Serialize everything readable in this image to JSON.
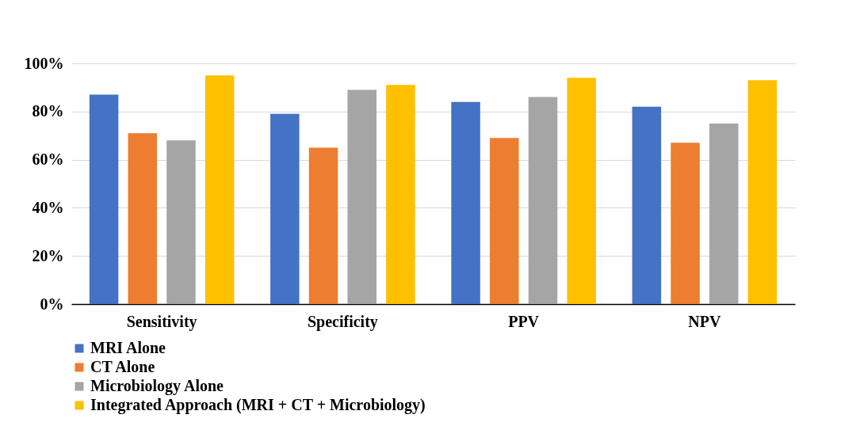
{
  "chart_data": {
    "type": "bar",
    "categories": [
      "Sensitivity",
      "Specificity",
      "PPV",
      "NPV"
    ],
    "series": [
      {
        "name": "MRI Alone",
        "color": "#4472c4",
        "values": [
          87,
          79,
          84,
          82
        ]
      },
      {
        "name": "CT Alone",
        "color": "#ed7d31",
        "values": [
          71,
          65,
          69,
          67
        ]
      },
      {
        "name": "Microbiology Alone",
        "color": "#a5a5a5",
        "values": [
          68,
          89,
          86,
          75
        ]
      },
      {
        "name": "Integrated Approach (MRI + CT + Microbiology)",
        "color": "#ffc000",
        "values": [
          95,
          91,
          94,
          93
        ]
      }
    ],
    "ylim": [
      0,
      100
    ],
    "yticks": [
      {
        "value": 0,
        "label": "0%"
      },
      {
        "value": 20,
        "label": "20%"
      },
      {
        "value": 40,
        "label": "40%"
      },
      {
        "value": 60,
        "label": "60%"
      },
      {
        "value": 80,
        "label": "80%"
      },
      {
        "value": 100,
        "label": "100%"
      }
    ],
    "grid": "y",
    "legend": "bottom"
  }
}
